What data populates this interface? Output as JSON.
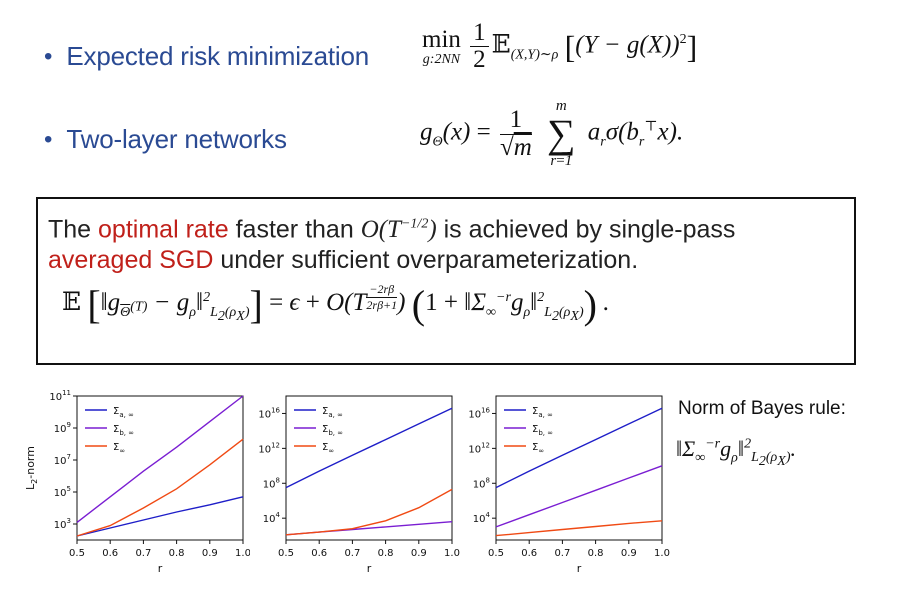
{
  "bullets": [
    {
      "label": "Expected risk minimization"
    },
    {
      "label": "Two-layer networks"
    }
  ],
  "box": {
    "line1_a": "The ",
    "line1_red": "optimal rate",
    "line1_b": " faster than ",
    "line1_c": " is achieved by single-pass",
    "line2_red": "averaged SGD",
    "line2_b": " under sufficient overparameterization."
  },
  "side_label": "Norm of Bayes rule:",
  "colors": {
    "accent_blue": "#2a4a93",
    "accent_red": "#c0201a",
    "series_a": "#1e1ec8",
    "series_b": "#7a1ed2",
    "series_inf": "#f04a14"
  },
  "chart_data": [
    {
      "type": "line",
      "xlabel": "r",
      "ylabel": "L2-norm",
      "log_y": true,
      "xlim": [
        0.5,
        1.0
      ],
      "ylim_log10": [
        2,
        11
      ],
      "x_ticks": [
        "0.5",
        "0.6",
        "0.7",
        "0.8",
        "0.9",
        "1.0"
      ],
      "y_ticks": [
        {
          "v": 3,
          "label": "3"
        },
        {
          "v": 5,
          "label": "5"
        },
        {
          "v": 7,
          "label": "7"
        },
        {
          "v": 9,
          "label": "9"
        },
        {
          "v": 11,
          "label": "11"
        }
      ],
      "legend": "top-left",
      "x": [
        0.5,
        0.6,
        0.7,
        0.8,
        0.9,
        1.0
      ],
      "series": [
        {
          "name": "Σa,∞",
          "name_base": "Σ",
          "name_sub": "a, ∞",
          "color": "#1e1ec8",
          "log10_values": [
            2.25,
            2.75,
            3.25,
            3.75,
            4.2,
            4.7
          ]
        },
        {
          "name": "Σb,∞",
          "name_base": "Σ",
          "name_sub": "b, ∞",
          "color": "#7a1ed2",
          "log10_values": [
            3.1,
            4.7,
            6.3,
            7.8,
            9.4,
            11.0
          ]
        },
        {
          "name": "Σ∞",
          "name_base": "Σ",
          "name_sub": "∞",
          "color": "#f04a14",
          "log10_values": [
            2.25,
            2.9,
            4.0,
            5.2,
            6.7,
            8.3
          ]
        }
      ]
    },
    {
      "type": "line",
      "xlabel": "r",
      "log_y": true,
      "xlim": [
        0.5,
        1.0
      ],
      "ylim_log10": [
        1.5,
        18
      ],
      "x_ticks": [
        "0.5",
        "0.6",
        "0.7",
        "0.8",
        "0.9",
        "1.0"
      ],
      "y_ticks": [
        {
          "v": 4,
          "label": "4"
        },
        {
          "v": 8,
          "label": "8"
        },
        {
          "v": 12,
          "label": "12"
        },
        {
          "v": 16,
          "label": "16"
        }
      ],
      "legend": "top-left",
      "x": [
        0.5,
        0.6,
        0.7,
        0.8,
        0.9,
        1.0
      ],
      "series": [
        {
          "name": "Σa,∞",
          "name_base": "Σ",
          "name_sub": "a, ∞",
          "color": "#1e1ec8",
          "log10_values": [
            7.5,
            9.4,
            11.2,
            13.0,
            14.8,
            16.6
          ]
        },
        {
          "name": "Σb,∞",
          "name_base": "Σ",
          "name_sub": "b, ∞",
          "color": "#7a1ed2",
          "log10_values": [
            2.1,
            2.4,
            2.7,
            3.0,
            3.3,
            3.6
          ]
        },
        {
          "name": "Σ∞",
          "name_base": "Σ",
          "name_sub": "∞",
          "color": "#f04a14",
          "log10_values": [
            2.1,
            2.4,
            2.8,
            3.7,
            5.2,
            7.3
          ]
        }
      ]
    },
    {
      "type": "line",
      "xlabel": "r",
      "log_y": true,
      "xlim": [
        0.5,
        1.0
      ],
      "ylim_log10": [
        1.5,
        18
      ],
      "x_ticks": [
        "0.5",
        "0.6",
        "0.7",
        "0.8",
        "0.9",
        "1.0"
      ],
      "y_ticks": [
        {
          "v": 4,
          "label": "4"
        },
        {
          "v": 8,
          "label": "8"
        },
        {
          "v": 12,
          "label": "12"
        },
        {
          "v": 16,
          "label": "16"
        }
      ],
      "legend": "top-left",
      "x": [
        0.5,
        0.6,
        0.7,
        0.8,
        0.9,
        1.0
      ],
      "series": [
        {
          "name": "Σa,∞",
          "name_base": "Σ",
          "name_sub": "a, ∞",
          "color": "#1e1ec8",
          "log10_values": [
            7.5,
            9.4,
            11.2,
            13.0,
            14.8,
            16.6
          ]
        },
        {
          "name": "Σb,∞",
          "name_base": "Σ",
          "name_sub": "b, ∞",
          "color": "#7a1ed2",
          "log10_values": [
            3.0,
            4.4,
            5.8,
            7.2,
            8.6,
            10.0
          ]
        },
        {
          "name": "Σ∞",
          "name_base": "Σ",
          "name_sub": "∞",
          "color": "#f04a14",
          "log10_values": [
            2.0,
            2.35,
            2.7,
            3.05,
            3.4,
            3.7
          ]
        }
      ]
    }
  ]
}
